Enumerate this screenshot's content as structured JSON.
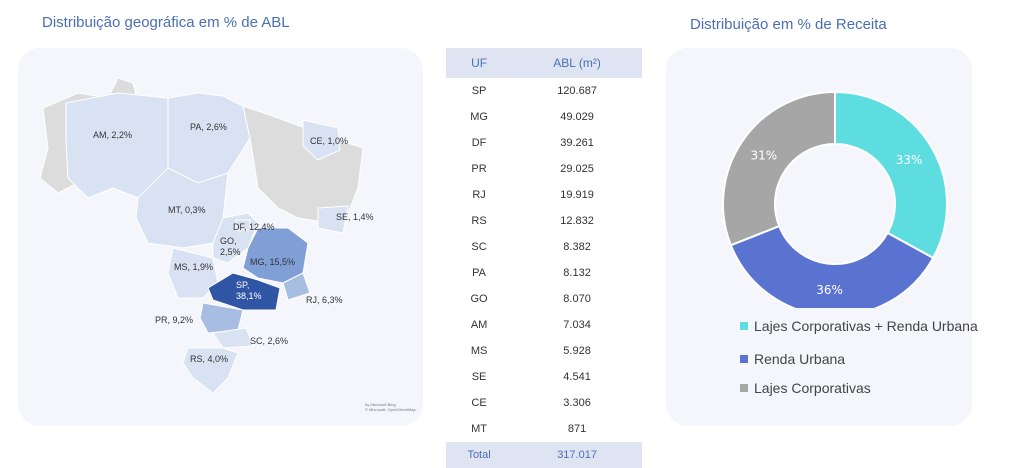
{
  "map": {
    "title": "Distribuição geográfica em % de ABL",
    "attribution": [
      "by Microsoft Bing",
      "© Microsoft, OpenStreetMap"
    ],
    "labels": [
      {
        "state": "AM",
        "pct": "2,2%"
      },
      {
        "state": "PA",
        "pct": "2,6%"
      },
      {
        "state": "CE",
        "pct": "1,0%"
      },
      {
        "state": "MT",
        "pct": "0,3%"
      },
      {
        "state": "DF",
        "pct": "12,4%"
      },
      {
        "state": "SE",
        "pct": "1,4%"
      },
      {
        "state": "GO",
        "pct": "2,5%"
      },
      {
        "state": "MS",
        "pct": "1,9%"
      },
      {
        "state": "MG",
        "pct": "15,5%"
      },
      {
        "state": "SP",
        "pct": "38,1%"
      },
      {
        "state": "RJ",
        "pct": "6,3%"
      },
      {
        "state": "PR",
        "pct": "9,2%"
      },
      {
        "state": "SC",
        "pct": "2,6%"
      },
      {
        "state": "RS",
        "pct": "4,0%"
      }
    ],
    "colors": {
      "low": "#d9e2f3",
      "mid": "#a8bde2",
      "high": "#7f9fd6",
      "top": "#2f55a4",
      "none": "#dcdcdc"
    }
  },
  "table": {
    "headers": [
      "UF",
      "ABL (m²)"
    ],
    "rows": [
      [
        "SP",
        "120.687"
      ],
      [
        "MG",
        "49.029"
      ],
      [
        "DF",
        "39.261"
      ],
      [
        "PR",
        "29.025"
      ],
      [
        "RJ",
        "19.919"
      ],
      [
        "RS",
        "12.832"
      ],
      [
        "SC",
        "8.382"
      ],
      [
        "PA",
        "8.132"
      ],
      [
        "GO",
        "8.070"
      ],
      [
        "AM",
        "7.034"
      ],
      [
        "MS",
        "5.928"
      ],
      [
        "SE",
        "4.541"
      ],
      [
        "CE",
        "3.306"
      ],
      [
        "MT",
        "871"
      ]
    ],
    "total": [
      "Total",
      "317.017"
    ]
  },
  "chart_data": {
    "type": "pie",
    "title": "Distribuição em % de Receita",
    "donut": true,
    "categories": [
      "Lajes Corporativas + Renda Urbana",
      "Renda Urbana",
      "Lajes Corporativas"
    ],
    "values": [
      33,
      36,
      31
    ],
    "data_labels": [
      "33%",
      "36%",
      "31%"
    ],
    "colors": [
      "#5ddde0",
      "#5b73d0",
      "#a6a6a6"
    ],
    "legend_position": "bottom"
  }
}
